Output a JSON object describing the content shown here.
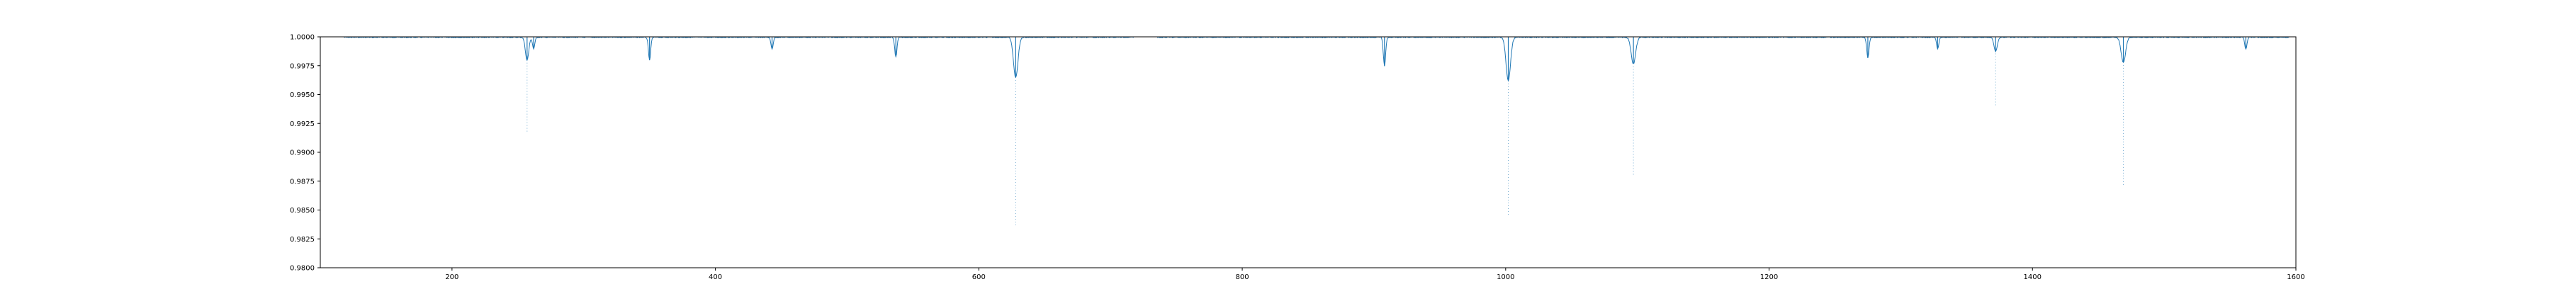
{
  "chart_data": {
    "type": "line",
    "title": "",
    "xlabel": "",
    "ylabel": "",
    "xlim": [
      100,
      1600
    ],
    "ylim": [
      0.98,
      1.0
    ],
    "grid": false,
    "legend": "none",
    "x_ticks": [
      200,
      400,
      600,
      800,
      1000,
      1200,
      1400,
      1600
    ],
    "x_tick_labels": [
      "200",
      "400",
      "600",
      "800",
      "1000",
      "1200",
      "1400",
      "1600"
    ],
    "y_ticks": [
      0.98,
      0.9825,
      0.985,
      0.9875,
      0.99,
      0.9925,
      0.995,
      0.9975,
      1.0
    ],
    "y_tick_labels": [
      "0.9800",
      "0.9825",
      "0.9850",
      "0.9875",
      "0.9900",
      "0.9925",
      "0.9950",
      "0.9975",
      "1.0000"
    ],
    "line_color": "#1f77b4",
    "x_range": [
      118,
      1595
    ],
    "gaps": [
      [
        718,
        735
      ]
    ],
    "dips": [
      {
        "x": 257,
        "min": 0.9918,
        "flux_min": 0.998,
        "width": 3
      },
      {
        "x": 262,
        "min": 0.999,
        "flux_min": 0.999,
        "width": 2
      },
      {
        "x": 350,
        "min": 0.998,
        "flux_min": 0.998,
        "width": 2
      },
      {
        "x": 443,
        "min": 0.999,
        "flux_min": 0.999,
        "width": 2
      },
      {
        "x": 537,
        "min": 0.9983,
        "flux_min": 0.9983,
        "width": 2
      },
      {
        "x": 628,
        "min": 0.9835,
        "flux_min": 0.9965,
        "width": 4
      },
      {
        "x": 908,
        "min": 0.9975,
        "flux_min": 0.9975,
        "width": 2
      },
      {
        "x": 1002,
        "min": 0.9845,
        "flux_min": 0.9962,
        "width": 4
      },
      {
        "x": 1097,
        "min": 0.988,
        "flux_min": 0.9977,
        "width": 4
      },
      {
        "x": 1275,
        "min": 0.9982,
        "flux_min": 0.9982,
        "width": 2
      },
      {
        "x": 1328,
        "min": 0.999,
        "flux_min": 0.999,
        "width": 2
      },
      {
        "x": 1372,
        "min": 0.994,
        "flux_min": 0.9988,
        "width": 3
      },
      {
        "x": 1469,
        "min": 0.987,
        "flux_min": 0.9978,
        "width": 4
      },
      {
        "x": 1562,
        "min": 0.999,
        "flux_min": 0.999,
        "width": 2
      }
    ]
  }
}
